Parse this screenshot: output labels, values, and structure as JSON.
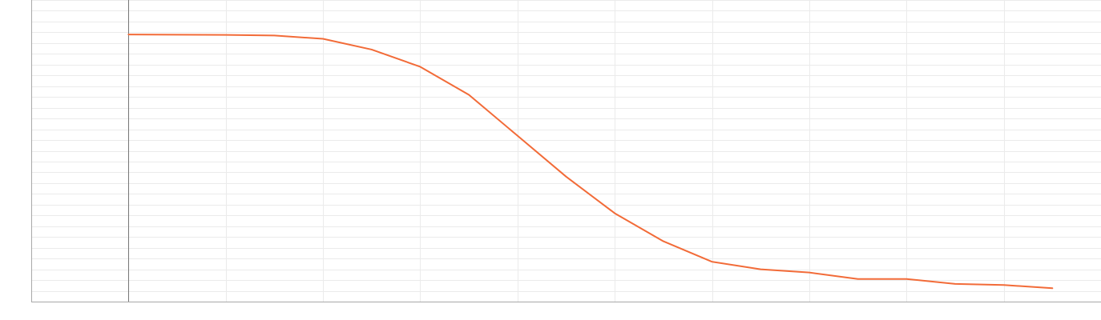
{
  "chart_data": {
    "type": "line",
    "x": [
      0,
      0.5,
      1,
      1.5,
      2,
      2.5,
      3,
      3.5,
      4,
      4.5,
      5,
      5.5,
      6,
      6.5,
      7,
      7.5,
      8,
      8.5,
      9,
      9.5
    ],
    "series": [
      {
        "color": "#f26b38",
        "values": [
          12.4,
          12.39,
          12.38,
          12.35,
          12.2,
          11.7,
          10.9,
          9.6,
          7.7,
          5.8,
          4.1,
          2.8,
          1.85,
          1.5,
          1.35,
          1.05,
          1.05,
          0.82,
          0.77,
          0.62
        ]
      }
    ],
    "xlim": [
      -1,
      10
    ],
    "ylim": [
      0,
      14
    ],
    "grid": true,
    "cursor_x": 0,
    "colors": {
      "grid": "#ebebeb",
      "axis": "#a8a8a8",
      "cursor": "#777777"
    }
  }
}
